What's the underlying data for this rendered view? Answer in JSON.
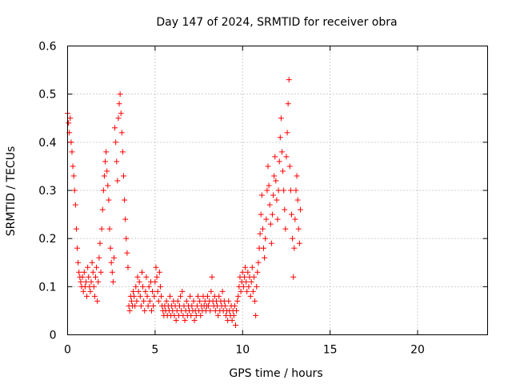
{
  "chart_data": {
    "type": "scatter",
    "title": "Day 147 of 2024, SRMTID for receiver obra",
    "xlabel": "GPS time / hours",
    "ylabel": "SRMTID / TECUs",
    "xlim": [
      0,
      24
    ],
    "ylim": [
      0,
      0.6
    ],
    "xticks": [
      0,
      5,
      10,
      15,
      20
    ],
    "xtick_labels": [
      "0",
      "5",
      "10",
      "15",
      "20"
    ],
    "yticks": [
      0,
      0.1,
      0.2,
      0.3,
      0.4,
      0.5,
      0.6
    ],
    "ytick_labels": [
      "0",
      "0.1",
      "0.2",
      "0.3",
      "0.4",
      "0.5",
      "0.6"
    ],
    "grid": true,
    "marker": "+",
    "series": [
      {
        "name": "SRMTID",
        "color": "#ff0000",
        "points": [
          [
            0.0,
            0.46
          ],
          [
            0.05,
            0.44
          ],
          [
            0.1,
            0.42
          ],
          [
            0.15,
            0.45
          ],
          [
            0.2,
            0.4
          ],
          [
            0.25,
            0.38
          ],
          [
            0.3,
            0.35
          ],
          [
            0.35,
            0.33
          ],
          [
            0.4,
            0.3
          ],
          [
            0.45,
            0.27
          ],
          [
            0.5,
            0.22
          ],
          [
            0.55,
            0.18
          ],
          [
            0.6,
            0.15
          ],
          [
            0.65,
            0.13
          ],
          [
            0.7,
            0.12
          ],
          [
            0.75,
            0.11
          ],
          [
            0.8,
            0.1
          ],
          [
            0.85,
            0.12
          ],
          [
            0.9,
            0.09
          ],
          [
            0.95,
            0.13
          ],
          [
            1.0,
            0.1
          ],
          [
            1.05,
            0.11
          ],
          [
            1.1,
            0.08
          ],
          [
            1.15,
            0.14
          ],
          [
            1.2,
            0.12
          ],
          [
            1.25,
            0.1
          ],
          [
            1.3,
            0.09
          ],
          [
            1.35,
            0.11
          ],
          [
            1.4,
            0.15
          ],
          [
            1.45,
            0.13
          ],
          [
            1.5,
            0.1
          ],
          [
            1.55,
            0.08
          ],
          [
            1.6,
            0.12
          ],
          [
            1.65,
            0.14
          ],
          [
            1.7,
            0.07
          ],
          [
            1.75,
            0.11
          ],
          [
            1.8,
            0.16
          ],
          [
            1.85,
            0.19
          ],
          [
            1.9,
            0.13
          ],
          [
            1.95,
            0.22
          ],
          [
            2.0,
            0.26
          ],
          [
            2.05,
            0.3
          ],
          [
            2.1,
            0.33
          ],
          [
            2.15,
            0.36
          ],
          [
            2.2,
            0.38
          ],
          [
            2.25,
            0.34
          ],
          [
            2.3,
            0.31
          ],
          [
            2.35,
            0.28
          ],
          [
            2.4,
            0.22
          ],
          [
            2.45,
            0.18
          ],
          [
            2.5,
            0.15
          ],
          [
            2.55,
            0.13
          ],
          [
            2.6,
            0.11
          ],
          [
            2.65,
            0.16
          ],
          [
            2.7,
            0.43
          ],
          [
            2.75,
            0.4
          ],
          [
            2.8,
            0.36
          ],
          [
            2.85,
            0.32
          ],
          [
            2.9,
            0.45
          ],
          [
            2.95,
            0.48
          ],
          [
            3.0,
            0.5
          ],
          [
            3.05,
            0.46
          ],
          [
            3.1,
            0.42
          ],
          [
            3.15,
            0.38
          ],
          [
            3.2,
            0.33
          ],
          [
            3.25,
            0.28
          ],
          [
            3.3,
            0.24
          ],
          [
            3.35,
            0.2
          ],
          [
            3.4,
            0.17
          ],
          [
            3.45,
            0.14
          ],
          [
            3.5,
            0.06
          ],
          [
            3.55,
            0.05
          ],
          [
            3.6,
            0.08
          ],
          [
            3.65,
            0.07
          ],
          [
            3.7,
            0.06
          ],
          [
            3.75,
            0.09
          ],
          [
            3.8,
            0.08
          ],
          [
            3.85,
            0.06
          ],
          [
            3.9,
            0.1
          ],
          [
            3.95,
            0.07
          ],
          [
            4.0,
            0.12
          ],
          [
            4.05,
            0.09
          ],
          [
            4.1,
            0.11
          ],
          [
            4.15,
            0.08
          ],
          [
            4.2,
            0.06
          ],
          [
            4.25,
            0.13
          ],
          [
            4.3,
            0.1
          ],
          [
            4.35,
            0.07
          ],
          [
            4.4,
            0.05
          ],
          [
            4.45,
            0.09
          ],
          [
            4.5,
            0.12
          ],
          [
            4.55,
            0.08
          ],
          [
            4.6,
            0.06
          ],
          [
            4.65,
            0.1
          ],
          [
            4.7,
            0.07
          ],
          [
            4.75,
            0.11
          ],
          [
            4.8,
            0.05
          ],
          [
            4.85,
            0.09
          ],
          [
            4.9,
            0.06
          ],
          [
            4.95,
            0.08
          ],
          [
            5.0,
            0.11
          ],
          [
            5.05,
            0.14
          ],
          [
            5.1,
            0.12
          ],
          [
            5.15,
            0.09
          ],
          [
            5.2,
            0.07
          ],
          [
            5.25,
            0.13
          ],
          [
            5.3,
            0.1
          ],
          [
            5.35,
            0.08
          ],
          [
            5.4,
            0.06
          ],
          [
            5.45,
            0.05
          ],
          [
            5.5,
            0.04
          ],
          [
            5.55,
            0.06
          ],
          [
            5.6,
            0.05
          ],
          [
            5.65,
            0.07
          ],
          [
            5.7,
            0.04
          ],
          [
            5.75,
            0.06
          ],
          [
            5.8,
            0.05
          ],
          [
            5.85,
            0.08
          ],
          [
            5.9,
            0.04
          ],
          [
            5.95,
            0.06
          ],
          [
            6.0,
            0.05
          ],
          [
            6.05,
            0.07
          ],
          [
            6.1,
            0.04
          ],
          [
            6.15,
            0.06
          ],
          [
            6.2,
            0.03
          ],
          [
            6.25,
            0.05
          ],
          [
            6.3,
            0.07
          ],
          [
            6.35,
            0.04
          ],
          [
            6.4,
            0.06
          ],
          [
            6.45,
            0.08
          ],
          [
            6.5,
            0.05
          ],
          [
            6.55,
            0.09
          ],
          [
            6.6,
            0.04
          ],
          [
            6.65,
            0.06
          ],
          [
            6.7,
            0.03
          ],
          [
            6.75,
            0.05
          ],
          [
            6.8,
            0.07
          ],
          [
            6.85,
            0.04
          ],
          [
            6.9,
            0.06
          ],
          [
            6.95,
            0.05
          ],
          [
            7.0,
            0.08
          ],
          [
            7.05,
            0.04
          ],
          [
            7.1,
            0.06
          ],
          [
            7.15,
            0.05
          ],
          [
            7.2,
            0.07
          ],
          [
            7.25,
            0.03
          ],
          [
            7.3,
            0.05
          ],
          [
            7.35,
            0.04
          ],
          [
            7.4,
            0.06
          ],
          [
            7.45,
            0.08
          ],
          [
            7.5,
            0.05
          ],
          [
            7.55,
            0.07
          ],
          [
            7.6,
            0.04
          ],
          [
            7.65,
            0.06
          ],
          [
            7.7,
            0.05
          ],
          [
            7.75,
            0.08
          ],
          [
            7.8,
            0.06
          ],
          [
            7.85,
            0.07
          ],
          [
            7.9,
            0.05
          ],
          [
            7.95,
            0.06
          ],
          [
            8.0,
            0.08
          ],
          [
            8.05,
            0.06
          ],
          [
            8.1,
            0.07
          ],
          [
            8.15,
            0.05
          ],
          [
            8.2,
            0.09
          ],
          [
            8.25,
            0.12
          ],
          [
            8.3,
            0.07
          ],
          [
            8.35,
            0.06
          ],
          [
            8.4,
            0.08
          ],
          [
            8.45,
            0.05
          ],
          [
            8.5,
            0.07
          ],
          [
            8.55,
            0.06
          ],
          [
            8.6,
            0.04
          ],
          [
            8.65,
            0.08
          ],
          [
            8.7,
            0.05
          ],
          [
            8.75,
            0.07
          ],
          [
            8.8,
            0.06
          ],
          [
            8.85,
            0.09
          ],
          [
            8.9,
            0.05
          ],
          [
            8.95,
            0.07
          ],
          [
            9.0,
            0.06
          ],
          [
            9.05,
            0.04
          ],
          [
            9.1,
            0.05
          ],
          [
            9.15,
            0.03
          ],
          [
            9.2,
            0.07
          ],
          [
            9.25,
            0.05
          ],
          [
            9.3,
            0.04
          ],
          [
            9.35,
            0.06
          ],
          [
            9.4,
            0.03
          ],
          [
            9.45,
            0.05
          ],
          [
            9.5,
            0.04
          ],
          [
            9.55,
            0.06
          ],
          [
            9.6,
            0.02
          ],
          [
            9.65,
            0.05
          ],
          [
            9.7,
            0.07
          ],
          [
            9.75,
            0.08
          ],
          [
            9.8,
            0.1
          ],
          [
            9.85,
            0.12
          ],
          [
            9.9,
            0.09
          ],
          [
            9.95,
            0.11
          ],
          [
            10.0,
            0.13
          ],
          [
            10.05,
            0.1
          ],
          [
            10.1,
            0.12
          ],
          [
            10.15,
            0.14
          ],
          [
            10.2,
            0.11
          ],
          [
            10.25,
            0.09
          ],
          [
            10.3,
            0.13
          ],
          [
            10.35,
            0.1
          ],
          [
            10.4,
            0.12
          ],
          [
            10.45,
            0.08
          ],
          [
            10.5,
            0.11
          ],
          [
            10.55,
            0.14
          ],
          [
            10.6,
            0.09
          ],
          [
            10.65,
            0.12
          ],
          [
            10.7,
            0.07
          ],
          [
            10.75,
            0.04
          ],
          [
            10.8,
            0.1
          ],
          [
            10.85,
            0.13
          ],
          [
            10.9,
            0.15
          ],
          [
            10.95,
            0.18
          ],
          [
            11.0,
            0.21
          ],
          [
            11.05,
            0.25
          ],
          [
            11.1,
            0.29
          ],
          [
            11.15,
            0.22
          ],
          [
            11.2,
            0.18
          ],
          [
            11.25,
            0.16
          ],
          [
            11.3,
            0.2
          ],
          [
            11.35,
            0.24
          ],
          [
            11.4,
            0.3
          ],
          [
            11.45,
            0.35
          ],
          [
            11.5,
            0.31
          ],
          [
            11.55,
            0.27
          ],
          [
            11.6,
            0.23
          ],
          [
            11.65,
            0.19
          ],
          [
            11.7,
            0.25
          ],
          [
            11.75,
            0.29
          ],
          [
            11.8,
            0.33
          ],
          [
            11.85,
            0.37
          ],
          [
            11.9,
            0.32
          ],
          [
            11.95,
            0.28
          ],
          [
            12.0,
            0.24
          ],
          [
            12.05,
            0.3
          ],
          [
            12.1,
            0.36
          ],
          [
            12.15,
            0.41
          ],
          [
            12.2,
            0.45
          ],
          [
            12.25,
            0.38
          ],
          [
            12.3,
            0.34
          ],
          [
            12.35,
            0.3
          ],
          [
            12.4,
            0.26
          ],
          [
            12.45,
            0.22
          ],
          [
            12.5,
            0.37
          ],
          [
            12.55,
            0.42
          ],
          [
            12.6,
            0.48
          ],
          [
            12.65,
            0.53
          ],
          [
            12.7,
            0.35
          ],
          [
            12.75,
            0.3
          ],
          [
            12.8,
            0.25
          ],
          [
            12.85,
            0.2
          ],
          [
            12.9,
            0.12
          ],
          [
            12.95,
            0.18
          ],
          [
            13.0,
            0.24
          ],
          [
            13.05,
            0.3
          ],
          [
            13.1,
            0.33
          ],
          [
            13.15,
            0.28
          ],
          [
            13.2,
            0.22
          ],
          [
            13.25,
            0.19
          ],
          [
            13.3,
            0.26
          ]
        ]
      }
    ]
  }
}
